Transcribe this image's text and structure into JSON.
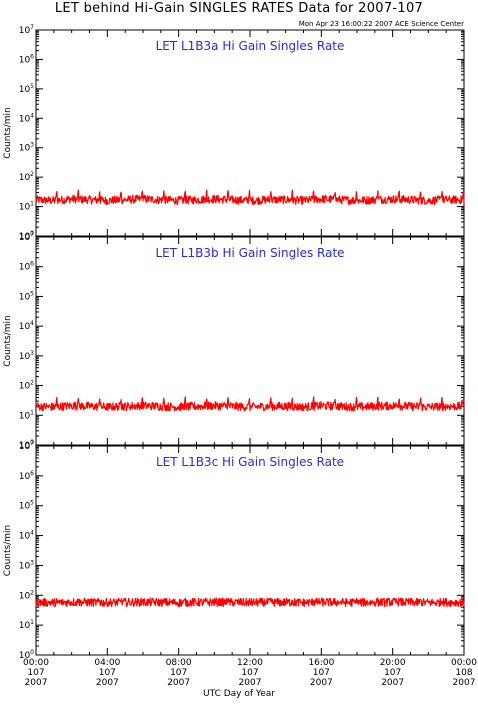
{
  "header": {
    "title": "LET behind Hi-Gain SINGLES RATES Data for 2007-107",
    "timestamp": "Mon Apr 23 16:00:22 2007 ACE Science Center"
  },
  "x_axis": {
    "title": "UTC Day of Year",
    "ticks": [
      {
        "time": "00:00",
        "day": "107",
        "year": "2007"
      },
      {
        "time": "04:00",
        "day": "107",
        "year": "2007"
      },
      {
        "time": "08:00",
        "day": "107",
        "year": "2007"
      },
      {
        "time": "12:00",
        "day": "107",
        "year": "2007"
      },
      {
        "time": "16:00",
        "day": "107",
        "year": "2007"
      },
      {
        "time": "20:00",
        "day": "107",
        "year": "2007"
      },
      {
        "time": "00:00",
        "day": "108",
        "year": "2007"
      }
    ]
  },
  "colors": {
    "series": "#ff0000",
    "panel_title": "#2a2ad8",
    "axes": "#000000"
  },
  "chart_data": [
    {
      "type": "line",
      "title": "LET L1B3a Hi Gain Singles Rate",
      "xlabel": "UTC Day of Year",
      "ylabel": "Counts/min",
      "y_scale": "log",
      "ylim": [
        1,
        10000000
      ],
      "y_ticks": [
        "10^0",
        "10^1",
        "10^2",
        "10^3",
        "10^4",
        "10^5",
        "10^6",
        "10^7"
      ],
      "xlim_hours": [
        0,
        24
      ],
      "series": [
        {
          "x_hours": [
            0,
            1,
            2,
            3,
            4,
            5,
            6,
            7,
            8,
            9,
            10,
            11,
            12,
            13,
            14,
            15,
            16,
            17,
            18,
            19,
            20,
            21,
            22,
            23,
            24
          ],
          "values": [
            17,
            16,
            18,
            17,
            16,
            17,
            18,
            17,
            16,
            17,
            18,
            17,
            16,
            17,
            17,
            16,
            18,
            17,
            16,
            17,
            18,
            17,
            16,
            17,
            17
          ]
        }
      ],
      "periodic_spike_peak": 45,
      "spike_interval_hours": 1.2
    },
    {
      "type": "line",
      "title": "LET L1B3b Hi Gain Singles Rate",
      "xlabel": "UTC Day of Year",
      "ylabel": "Counts/min",
      "y_scale": "log",
      "ylim": [
        1,
        10000000
      ],
      "y_ticks": [
        "10^0",
        "10^1",
        "10^2",
        "10^3",
        "10^4",
        "10^5",
        "10^6",
        "10^7"
      ],
      "xlim_hours": [
        0,
        24
      ],
      "series": [
        {
          "x_hours": [
            0,
            1,
            2,
            3,
            4,
            5,
            6,
            7,
            8,
            9,
            10,
            11,
            12,
            13,
            14,
            15,
            16,
            17,
            18,
            19,
            20,
            21,
            22,
            23,
            24
          ],
          "values": [
            20,
            19,
            21,
            20,
            19,
            20,
            21,
            20,
            19,
            20,
            21,
            20,
            19,
            20,
            20,
            19,
            21,
            20,
            19,
            20,
            21,
            20,
            19,
            20,
            20
          ]
        }
      ],
      "periodic_spike_peak": 50,
      "spike_interval_hours": 1.2
    },
    {
      "type": "line",
      "title": "LET L1B3c Hi Gain Singles Rate",
      "xlabel": "UTC Day of Year",
      "ylabel": "Counts/min",
      "y_scale": "log",
      "ylim": [
        1,
        10000000
      ],
      "y_ticks": [
        "10^0",
        "10^1",
        "10^2",
        "10^3",
        "10^4",
        "10^5",
        "10^6",
        "10^7"
      ],
      "xlim_hours": [
        0,
        24
      ],
      "series": [
        {
          "x_hours": [
            0,
            1,
            2,
            3,
            4,
            5,
            6,
            7,
            8,
            9,
            10,
            11,
            12,
            13,
            14,
            15,
            16,
            17,
            18,
            19,
            20,
            21,
            22,
            23,
            24
          ],
          "values": [
            58,
            57,
            59,
            58,
            57,
            58,
            59,
            58,
            57,
            58,
            59,
            58,
            57,
            58,
            58,
            57,
            59,
            58,
            57,
            58,
            59,
            58,
            57,
            58,
            58
          ]
        }
      ],
      "periodic_spike_peak": 80,
      "spike_interval_hours": 1.2
    }
  ]
}
